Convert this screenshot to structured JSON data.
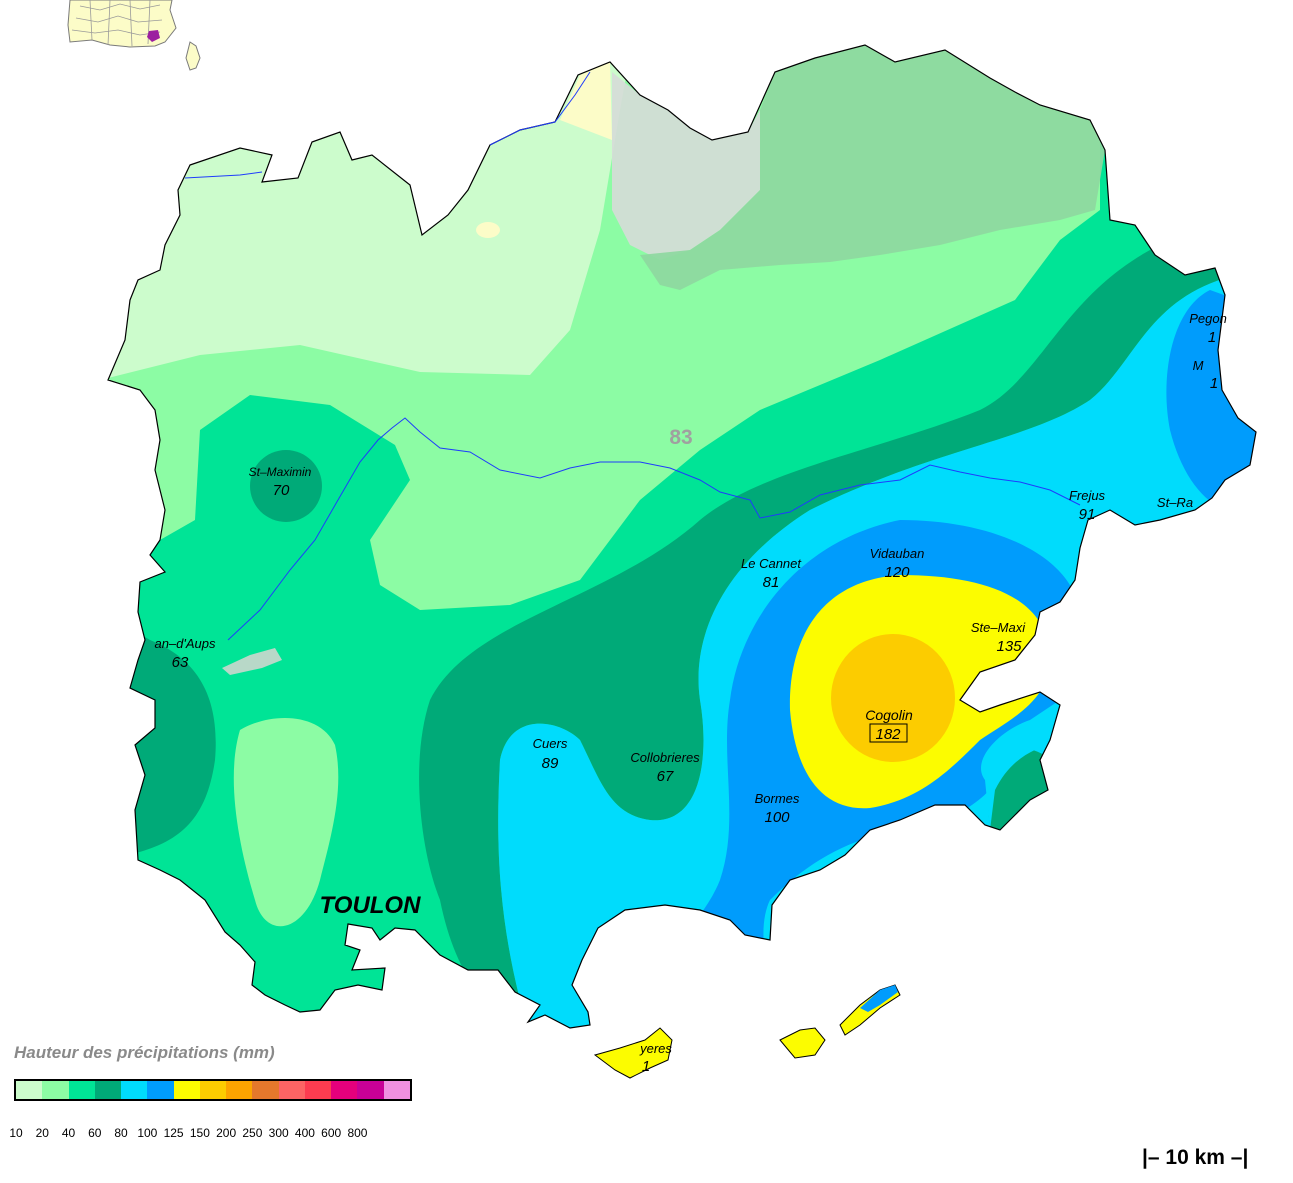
{
  "map": {
    "department_number": "83",
    "city_label": "TOULON",
    "stations": [
      {
        "name": "St–Maximin",
        "value": "70"
      },
      {
        "name": "an–d'Aups",
        "value": "63"
      },
      {
        "name": "Le Cannet",
        "value": "81"
      },
      {
        "name": "Vidauban",
        "value": "120"
      },
      {
        "name": "Frejus",
        "value": "91"
      },
      {
        "name": "St–Ra",
        "value": ""
      },
      {
        "name": "Pegon",
        "value": "1"
      },
      {
        "name": "M",
        "value": "1"
      },
      {
        "name": "Ste–Maxi",
        "value": "135"
      },
      {
        "name": "Cogolin",
        "value": "182"
      },
      {
        "name": "Cuers",
        "value": "89"
      },
      {
        "name": "Collobrieres",
        "value": "67"
      },
      {
        "name": "Bormes",
        "value": "100"
      },
      {
        "name": "yeres",
        "value": "1"
      }
    ],
    "max_station": "Cogolin"
  },
  "legend": {
    "title": "Hauteur des précipitations (mm)",
    "ticks": [
      "10",
      "20",
      "40",
      "60",
      "80",
      "100",
      "125",
      "150",
      "200",
      "250",
      "300",
      "400",
      "600",
      "800"
    ],
    "colors": [
      "#ccfccc",
      "#8cfca4",
      "#00e496",
      "#00aa78",
      "#00dcfc",
      "#009cfc",
      "#fcfc00",
      "#fccc00",
      "#fca400",
      "#e4782c",
      "#fc6464",
      "#fc3c50",
      "#e4007c",
      "#c80096",
      "#f090e0"
    ]
  },
  "scale": {
    "label": "10 km"
  },
  "colors": {
    "level_10_20": "#ccfccc",
    "level_20_40": "#8cfca4",
    "level_40_60": "#00e496",
    "level_60_80": "#00aa78",
    "level_80_100": "#00dcfc",
    "level_100_125": "#009cfc",
    "level_125_150": "#fcfc00",
    "level_150_200": "#fccc00",
    "outside_department": "#8ed8a0",
    "inset_map": "#fcfcc8",
    "rivers": "#1e3cfc"
  }
}
